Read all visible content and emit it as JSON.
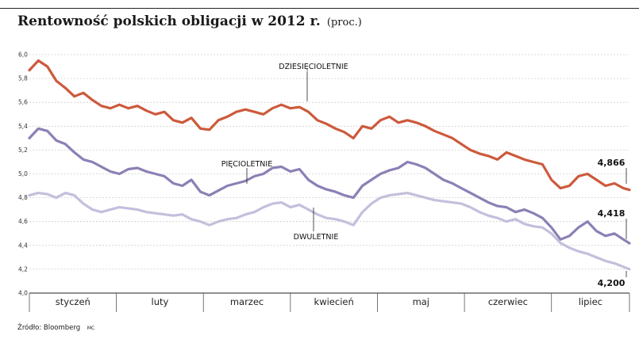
{
  "header": {
    "title": "Rentowność polskich obligacji w 2012 r.",
    "unit": "(proc.)"
  },
  "footer": {
    "source": "Źródło: Bloomberg",
    "mark": "MC"
  },
  "chart_data": {
    "type": "line",
    "title": "Rentowność polskich obligacji w 2012 r.",
    "ylabel": "proc.",
    "xlabel": "",
    "ylim": [
      4.0,
      6.0
    ],
    "xlim": [
      0,
      100
    ],
    "yticks": [
      4.0,
      4.2,
      4.4,
      4.6,
      4.8,
      5.0,
      5.2,
      5.4,
      5.6,
      5.8,
      6.0
    ],
    "ytick_labels": [
      "4,0",
      "4,2",
      "4,4",
      "4,6",
      "4,8",
      "5,0",
      "5,2",
      "5,4",
      "5,6",
      "5,8",
      "6,0"
    ],
    "months": [
      "styczeń",
      "luty",
      "marzec",
      "kwiecień",
      "maj",
      "czerwiec",
      "lipiec"
    ],
    "month_bounds": [
      0,
      14.5,
      29,
      43.5,
      58,
      72.5,
      87,
      100
    ],
    "grid": "horizontal",
    "series": [
      {
        "name": "DZIESIĘCIOLETNIE",
        "color": "#cc5a3c",
        "end_label": "4,866",
        "x": [
          0,
          1.5,
          3,
          4.5,
          6,
          7.5,
          9,
          10.5,
          12,
          13.5,
          15,
          16.5,
          18,
          19.5,
          21,
          22.5,
          24,
          25.5,
          27,
          28.5,
          30,
          31.5,
          33,
          34.5,
          36,
          37.5,
          39,
          40.5,
          42,
          43.5,
          45,
          46.5,
          48,
          49.5,
          51,
          52.5,
          54,
          55.5,
          57,
          58.5,
          60,
          61.5,
          63,
          64.5,
          66,
          67.5,
          69,
          70.5,
          72,
          73.5,
          75,
          76.5,
          78,
          79.5,
          81,
          82.5,
          84,
          85.5,
          87,
          88.5,
          90,
          91.5,
          93,
          94.5,
          96,
          97.5,
          99,
          100
        ],
        "values": [
          5.87,
          5.95,
          5.9,
          5.78,
          5.72,
          5.65,
          5.68,
          5.62,
          5.57,
          5.55,
          5.58,
          5.55,
          5.57,
          5.53,
          5.5,
          5.52,
          5.45,
          5.43,
          5.47,
          5.38,
          5.37,
          5.45,
          5.48,
          5.52,
          5.54,
          5.52,
          5.5,
          5.55,
          5.58,
          5.55,
          5.56,
          5.52,
          5.45,
          5.42,
          5.38,
          5.35,
          5.3,
          5.4,
          5.38,
          5.45,
          5.48,
          5.43,
          5.45,
          5.43,
          5.4,
          5.36,
          5.33,
          5.3,
          5.25,
          5.2,
          5.17,
          5.15,
          5.12,
          5.18,
          5.15,
          5.12,
          5.1,
          5.08,
          4.95,
          4.88,
          4.9,
          4.98,
          5.0,
          4.95,
          4.9,
          4.92,
          4.88,
          4.866
        ]
      },
      {
        "name": "PIĘCIOLETNIE",
        "color": "#8c80b5",
        "end_label": "4,418",
        "x": [
          0,
          1.5,
          3,
          4.5,
          6,
          7.5,
          9,
          10.5,
          12,
          13.5,
          15,
          16.5,
          18,
          19.5,
          21,
          22.5,
          24,
          25.5,
          27,
          28.5,
          30,
          31.5,
          33,
          34.5,
          36,
          37.5,
          39,
          40.5,
          42,
          43.5,
          45,
          46.5,
          48,
          49.5,
          51,
          52.5,
          54,
          55.5,
          57,
          58.5,
          60,
          61.5,
          63,
          64.5,
          66,
          67.5,
          69,
          70.5,
          72,
          73.5,
          75,
          76.5,
          78,
          79.5,
          81,
          82.5,
          84,
          85.5,
          87,
          88.5,
          90,
          91.5,
          93,
          94.5,
          96,
          97.5,
          99,
          100
        ],
        "values": [
          5.3,
          5.38,
          5.36,
          5.28,
          5.25,
          5.18,
          5.12,
          5.1,
          5.06,
          5.02,
          5.0,
          5.04,
          5.05,
          5.02,
          5.0,
          4.98,
          4.92,
          4.9,
          4.95,
          4.85,
          4.82,
          4.86,
          4.9,
          4.92,
          4.94,
          4.98,
          5.0,
          5.05,
          5.06,
          5.02,
          5.04,
          4.95,
          4.9,
          4.87,
          4.85,
          4.82,
          4.8,
          4.9,
          4.95,
          5.0,
          5.03,
          5.05,
          5.1,
          5.08,
          5.05,
          5.0,
          4.95,
          4.92,
          4.88,
          4.84,
          4.8,
          4.76,
          4.73,
          4.72,
          4.68,
          4.7,
          4.67,
          4.63,
          4.55,
          4.45,
          4.48,
          4.55,
          4.6,
          4.52,
          4.48,
          4.5,
          4.45,
          4.418
        ]
      },
      {
        "name": "DWULETNIE",
        "color": "#c3bfdc",
        "end_label": "4,200",
        "x": [
          0,
          1.5,
          3,
          4.5,
          6,
          7.5,
          9,
          10.5,
          12,
          13.5,
          15,
          16.5,
          18,
          19.5,
          21,
          22.5,
          24,
          25.5,
          27,
          28.5,
          30,
          31.5,
          33,
          34.5,
          36,
          37.5,
          39,
          40.5,
          42,
          43.5,
          45,
          46.5,
          48,
          49.5,
          51,
          52.5,
          54,
          55.5,
          57,
          58.5,
          60,
          61.5,
          63,
          64.5,
          66,
          67.5,
          69,
          70.5,
          72,
          73.5,
          75,
          76.5,
          78,
          79.5,
          81,
          82.5,
          84,
          85.5,
          87,
          88.5,
          90,
          91.5,
          93,
          94.5,
          96,
          97.5,
          99,
          100
        ],
        "values": [
          4.82,
          4.84,
          4.83,
          4.8,
          4.84,
          4.82,
          4.75,
          4.7,
          4.68,
          4.7,
          4.72,
          4.71,
          4.7,
          4.68,
          4.67,
          4.66,
          4.65,
          4.66,
          4.62,
          4.6,
          4.57,
          4.6,
          4.62,
          4.63,
          4.66,
          4.68,
          4.72,
          4.75,
          4.76,
          4.72,
          4.74,
          4.7,
          4.66,
          4.63,
          4.62,
          4.6,
          4.57,
          4.68,
          4.75,
          4.8,
          4.82,
          4.83,
          4.84,
          4.82,
          4.8,
          4.78,
          4.77,
          4.76,
          4.75,
          4.72,
          4.68,
          4.65,
          4.63,
          4.6,
          4.62,
          4.58,
          4.56,
          4.55,
          4.5,
          4.42,
          4.38,
          4.35,
          4.33,
          4.3,
          4.27,
          4.25,
          4.22,
          4.2
        ]
      }
    ]
  }
}
